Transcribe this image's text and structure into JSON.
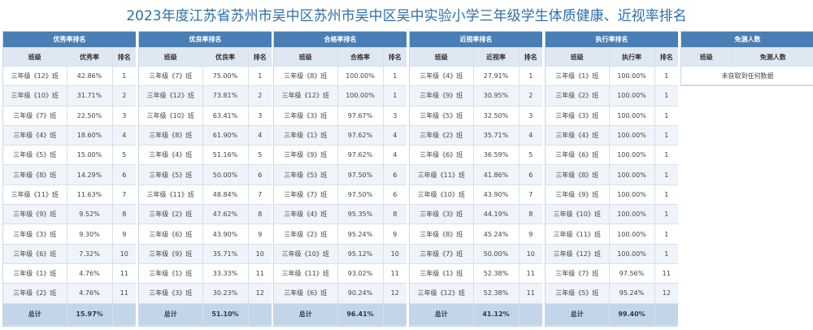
{
  "title": "2023年度江苏省苏州市吴中区苏州市吴中区吴中实验小学三年级学生体质健康、近视率排名",
  "col_class": "班级",
  "col_rank": "排名",
  "total_label": "总计",
  "panels": [
    {
      "title": "优秀率排名",
      "rate_label": "优秀率",
      "total": "15.97%",
      "rows": [
        [
          "三年级《12》班",
          "42.86%",
          "1"
        ],
        [
          "三年级《10》班",
          "31.71%",
          "2"
        ],
        [
          "三年级《7》班",
          "22.50%",
          "3"
        ],
        [
          "三年级《4》班",
          "18.60%",
          "4"
        ],
        [
          "三年级《5》班",
          "15.00%",
          "5"
        ],
        [
          "三年级《8》班",
          "14.29%",
          "6"
        ],
        [
          "三年级《11》班",
          "11.63%",
          "7"
        ],
        [
          "三年级《9》班",
          "9.52%",
          "8"
        ],
        [
          "三年级《3》班",
          "9.30%",
          "9"
        ],
        [
          "三年级《6》班",
          "7.32%",
          "10"
        ],
        [
          "三年级《1》班",
          "4.76%",
          "11"
        ],
        [
          "三年级《2》班",
          "4.76%",
          "11"
        ]
      ]
    },
    {
      "title": "优良率排名",
      "rate_label": "优良率",
      "total": "51.10%",
      "rows": [
        [
          "三年级《7》班",
          "75.00%",
          "1"
        ],
        [
          "三年级《12》班",
          "73.81%",
          "2"
        ],
        [
          "三年级《10》班",
          "63.41%",
          "3"
        ],
        [
          "三年级《8》班",
          "61.90%",
          "4"
        ],
        [
          "三年级《4》班",
          "51.16%",
          "5"
        ],
        [
          "三年级《5》班",
          "50.00%",
          "6"
        ],
        [
          "三年级《11》班",
          "48.84%",
          "7"
        ],
        [
          "三年级《2》班",
          "47.62%",
          "8"
        ],
        [
          "三年级《6》班",
          "43.90%",
          "9"
        ],
        [
          "三年级《9》班",
          "35.71%",
          "10"
        ],
        [
          "三年级《1》班",
          "33.33%",
          "11"
        ],
        [
          "三年级《3》班",
          "30.23%",
          "12"
        ]
      ]
    },
    {
      "title": "合格率排名",
      "rate_label": "合格率",
      "total": "96.41%",
      "rows": [
        [
          "三年级《8》班",
          "100.00%",
          "1"
        ],
        [
          "三年级《12》班",
          "100.00%",
          "1"
        ],
        [
          "三年级《3》班",
          "97.67%",
          "3"
        ],
        [
          "三年级《1》班",
          "97.62%",
          "4"
        ],
        [
          "三年级《9》班",
          "97.62%",
          "4"
        ],
        [
          "三年级《5》班",
          "97.50%",
          "6"
        ],
        [
          "三年级《7》班",
          "97.50%",
          "6"
        ],
        [
          "三年级《4》班",
          "95.35%",
          "8"
        ],
        [
          "三年级《2》班",
          "95.24%",
          "9"
        ],
        [
          "三年级《10》班",
          "95.12%",
          "10"
        ],
        [
          "三年级《11》班",
          "93.02%",
          "11"
        ],
        [
          "三年级《6》班",
          "90.24%",
          "12"
        ]
      ]
    },
    {
      "title": "近视率排名",
      "rate_label": "近视率",
      "total": "41.12%",
      "rows": [
        [
          "三年级《4》班",
          "27.91%",
          "1"
        ],
        [
          "三年级《9》班",
          "30.95%",
          "2"
        ],
        [
          "三年级《5》班",
          "32.50%",
          "3"
        ],
        [
          "三年级《2》班",
          "35.71%",
          "4"
        ],
        [
          "三年级《6》班",
          "36.59%",
          "5"
        ],
        [
          "三年级《11》班",
          "41.86%",
          "6"
        ],
        [
          "三年级《10》班",
          "43.90%",
          "7"
        ],
        [
          "三年级《3》班",
          "44.19%",
          "8"
        ],
        [
          "三年级《8》班",
          "45.24%",
          "9"
        ],
        [
          "三年级《7》班",
          "50.00%",
          "10"
        ],
        [
          "三年级《1》班",
          "52.38%",
          "11"
        ],
        [
          "三年级《12》班",
          "52.38%",
          "11"
        ]
      ]
    },
    {
      "title": "执行率排名",
      "rate_label": "执行率",
      "total": "99.40%",
      "rows": [
        [
          "三年级《1》班",
          "100.00%",
          "1"
        ],
        [
          "三年级《2》班",
          "100.00%",
          "1"
        ],
        [
          "三年级《3》班",
          "100.00%",
          "1"
        ],
        [
          "三年级《4》班",
          "100.00%",
          "1"
        ],
        [
          "三年级《6》班",
          "100.00%",
          "1"
        ],
        [
          "三年级《8》班",
          "100.00%",
          "1"
        ],
        [
          "三年级《9》班",
          "100.00%",
          "1"
        ],
        [
          "三年级《10》班",
          "100.00%",
          "1"
        ],
        [
          "三年级《11》班",
          "100.00%",
          "1"
        ],
        [
          "三年级《12》班",
          "100.00%",
          "1"
        ],
        [
          "三年级《7》班",
          "97.56%",
          "11"
        ],
        [
          "三年级《5》班",
          "95.24%",
          "12"
        ]
      ]
    }
  ],
  "exempt_panel": {
    "title": "免测人数",
    "col_class": "班级",
    "col_count": "免测人数",
    "empty_text": "未获取到任何数据"
  }
}
